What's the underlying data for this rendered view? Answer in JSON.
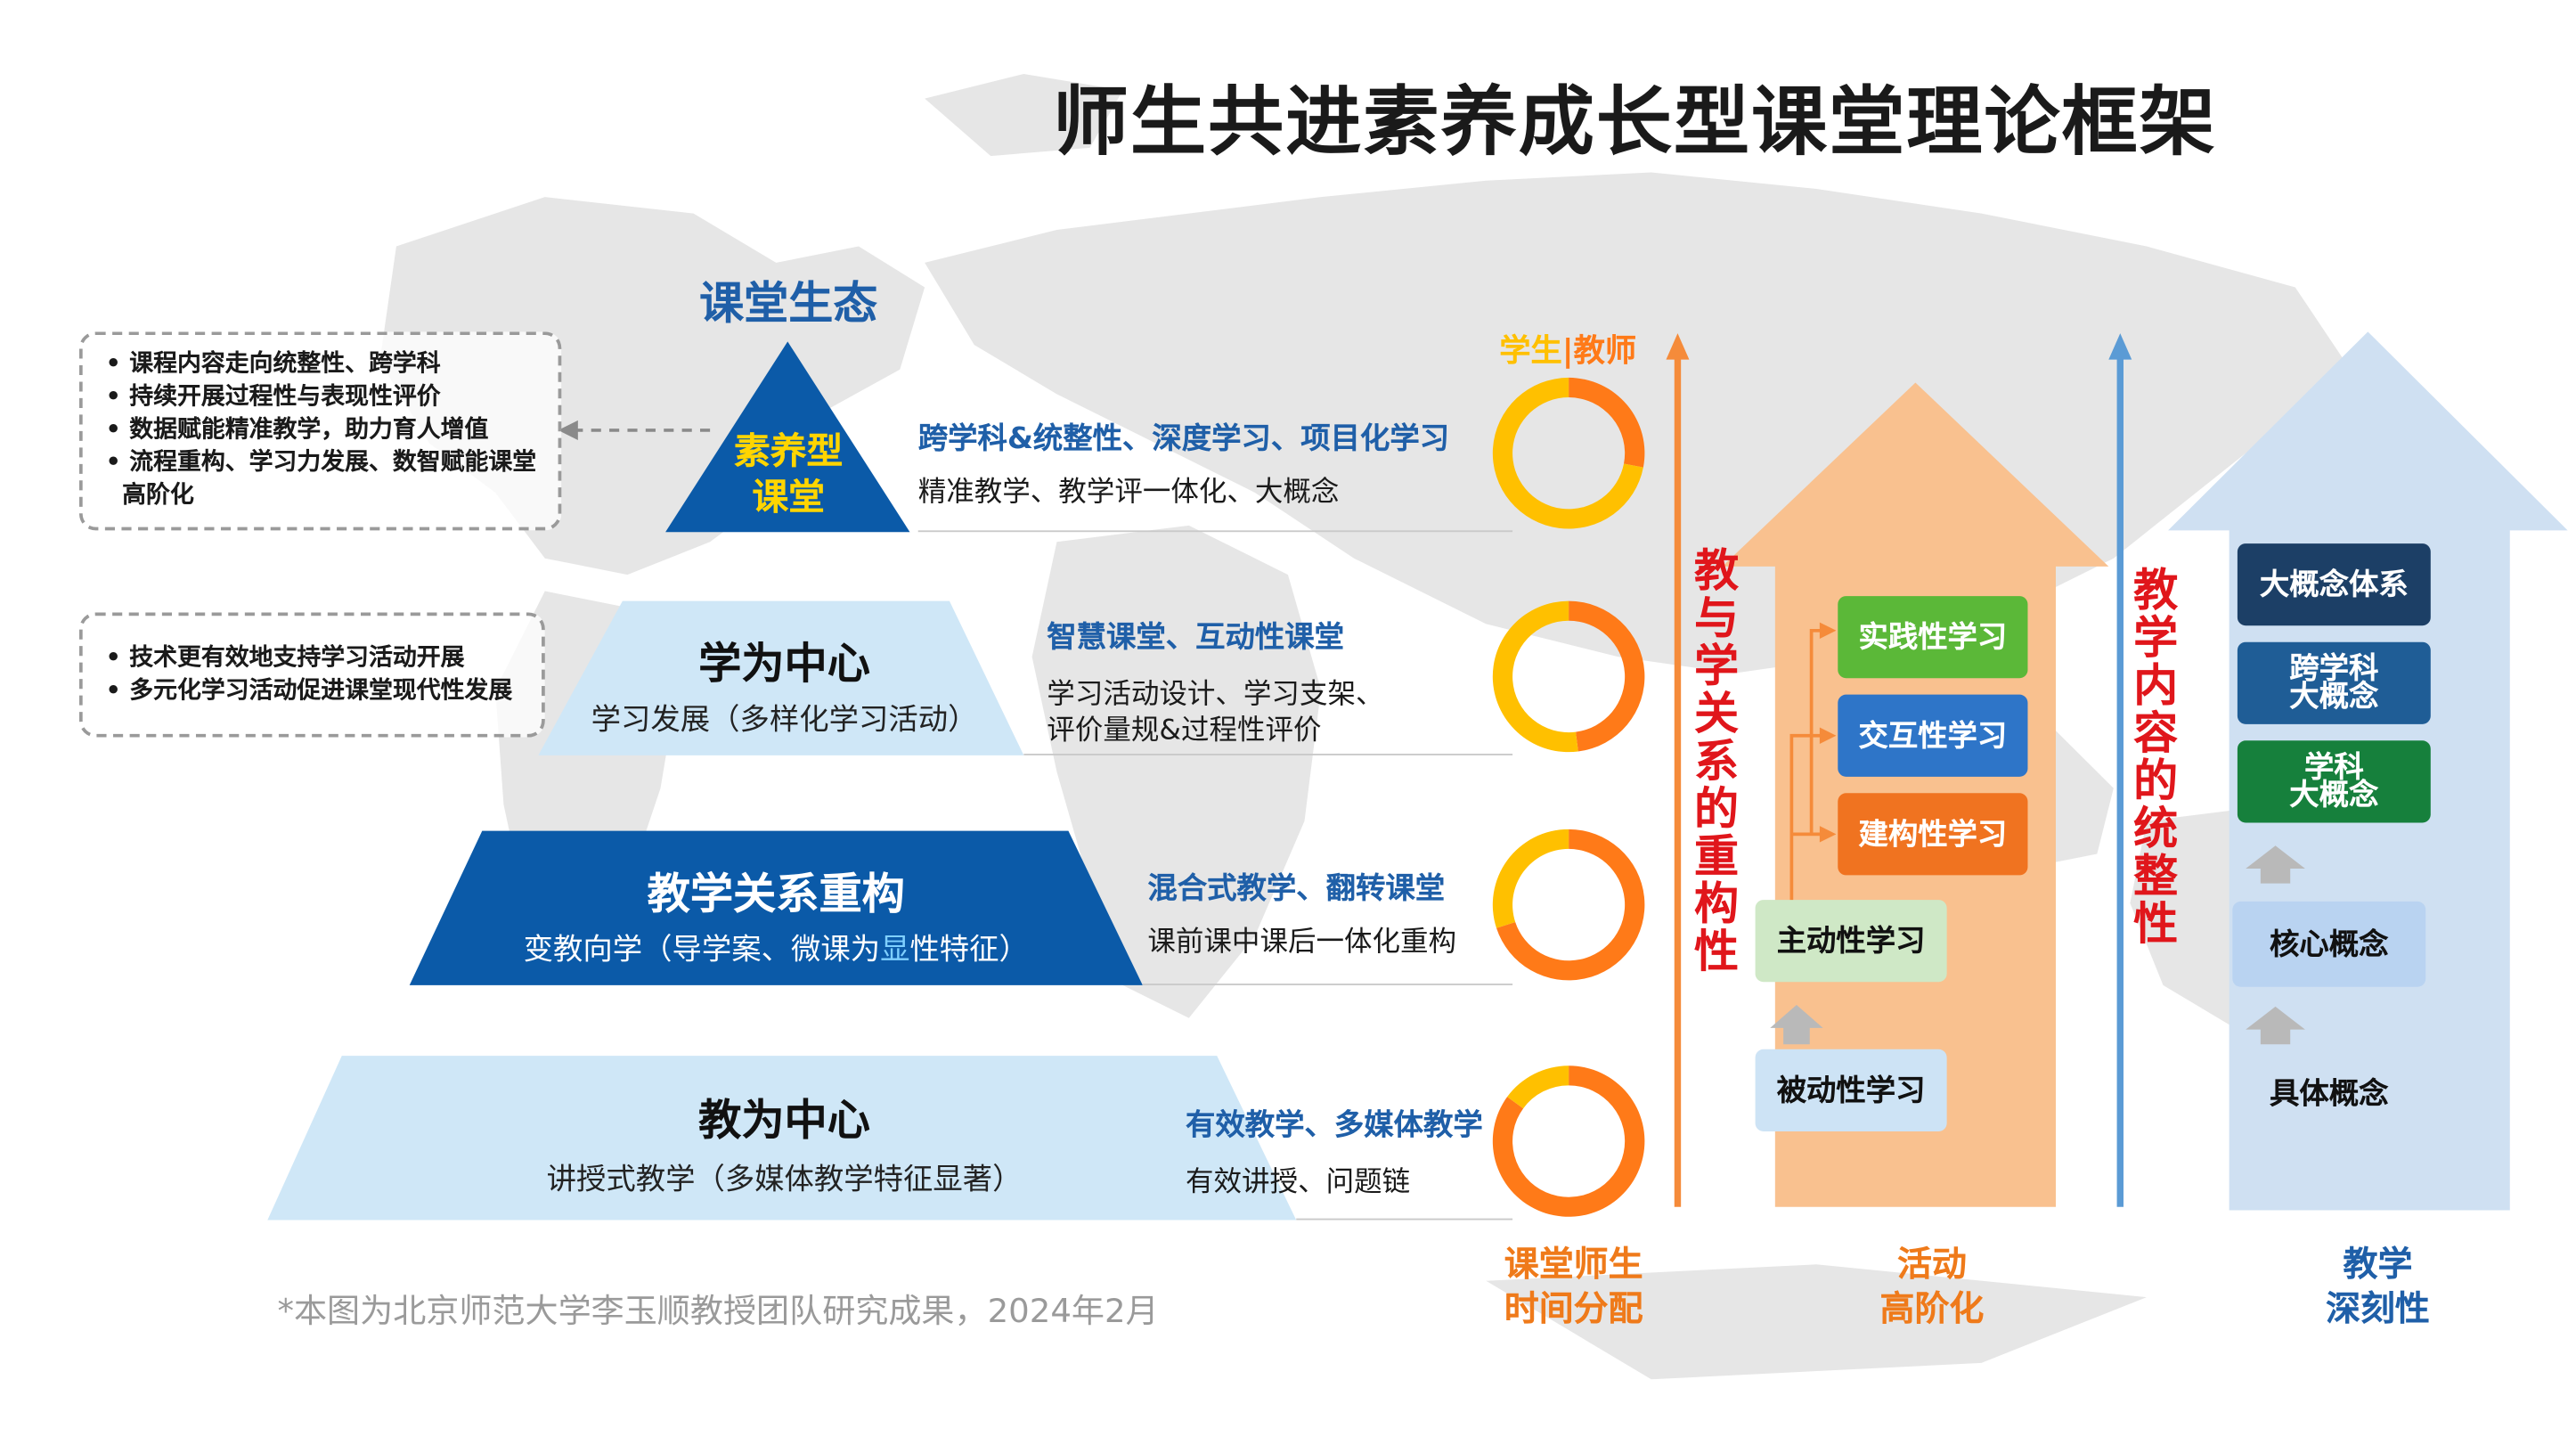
{
  "title": "师生共进素养成长型课堂理论框架",
  "ecology_label": "课堂生态",
  "pyramid": {
    "top": {
      "line1": "素养型",
      "line2": "课堂"
    },
    "tier2": {
      "title": "学为中心",
      "subtitle": "学习发展（多样化学习活动）"
    },
    "tier3": {
      "title": "教学关系重构",
      "subtitle_pre": "变教向学（导学案、微课为",
      "subtitle_hl": "显",
      "subtitle_post": "性特征）"
    },
    "tier4": {
      "title": "教为中心",
      "subtitle": "讲授式教学（多媒体教学特征显著）"
    }
  },
  "notes_top": [
    "课程内容走向统整性、跨学科",
    "持续开展过程性与表现性评价",
    "数据赋能精准教学，助力育人增值",
    "流程重构、学习力发展、数智赋能课堂高阶化"
  ],
  "notes_mid": [
    "技术更有效地支持学习活动开展",
    "多元化学习活动促进课堂现代性发展"
  ],
  "levels": [
    {
      "head": "跨学科&统整性、深度学习、项目化学习",
      "body1": "精准教学、教学评一体化、大概念",
      "body2": ""
    },
    {
      "head": "智慧课堂、互动性课堂",
      "body1": "学习活动设计、学习支架、",
      "body2": "评价量规&过程性评价"
    },
    {
      "head": "混合式教学、翻转课堂",
      "body1": "课前课中课后一体化重构",
      "body2": ""
    },
    {
      "head": "有效教学、多媒体教学",
      "body1": "有效讲授、问题链",
      "body2": ""
    }
  ],
  "donut_legend": {
    "student": "学生",
    "divider": "|",
    "teacher": "教师"
  },
  "donuts": [
    {
      "student_share": 0.72,
      "teacher_share": 0.28
    },
    {
      "student_share": 0.52,
      "teacher_share": 0.48
    },
    {
      "student_share": 0.3,
      "teacher_share": 0.7
    },
    {
      "student_share": 0.15,
      "teacher_share": 0.85
    }
  ],
  "vertical_label_1": "教与学关系的重构性",
  "vertical_label_2": "教学内容的统整性",
  "activity_boxes": {
    "practice": "实践性学习",
    "interactive": "交互性学习",
    "constructive": "建构性学习",
    "active": "主动性学习",
    "passive": "被动性学习"
  },
  "concept_boxes": {
    "big_system": "大概念体系",
    "cross_line1": "跨学科",
    "cross_line2": "大概念",
    "subject_line1": "学科",
    "subject_line2": "大概念",
    "core": "核心概念",
    "concrete": "具体概念"
  },
  "footer_labels": {
    "time": {
      "line1": "课堂师生",
      "line2": "时间分配"
    },
    "activity": {
      "line1": "活动",
      "line2": "高阶化"
    },
    "depth": {
      "line1": "教学",
      "line2": "深刻性"
    }
  },
  "source_note": "*本图为北京师范大学李玉顺教授团队研究成果，2024年2月",
  "colors": {
    "dark_blue": "#0b5aa8",
    "light_blue": "#cfe7f7",
    "title_blue": "#1f5fa8",
    "donut_yellow": "#ffc000",
    "donut_orange": "#ff7a18",
    "red_label": "#e0161b",
    "orange_arrow": "#f9c18f",
    "blue_arrow": "#cfe0f2",
    "green_box": "#5bb838",
    "blue_box": "#2e75c8",
    "orange_box": "#f07320",
    "light_green_box": "#cfe8c6",
    "light_blue_box": "#cde3f5",
    "navy_box": "#1c3f66",
    "steel_box": "#1f5d96",
    "forest_box": "#16803c"
  }
}
